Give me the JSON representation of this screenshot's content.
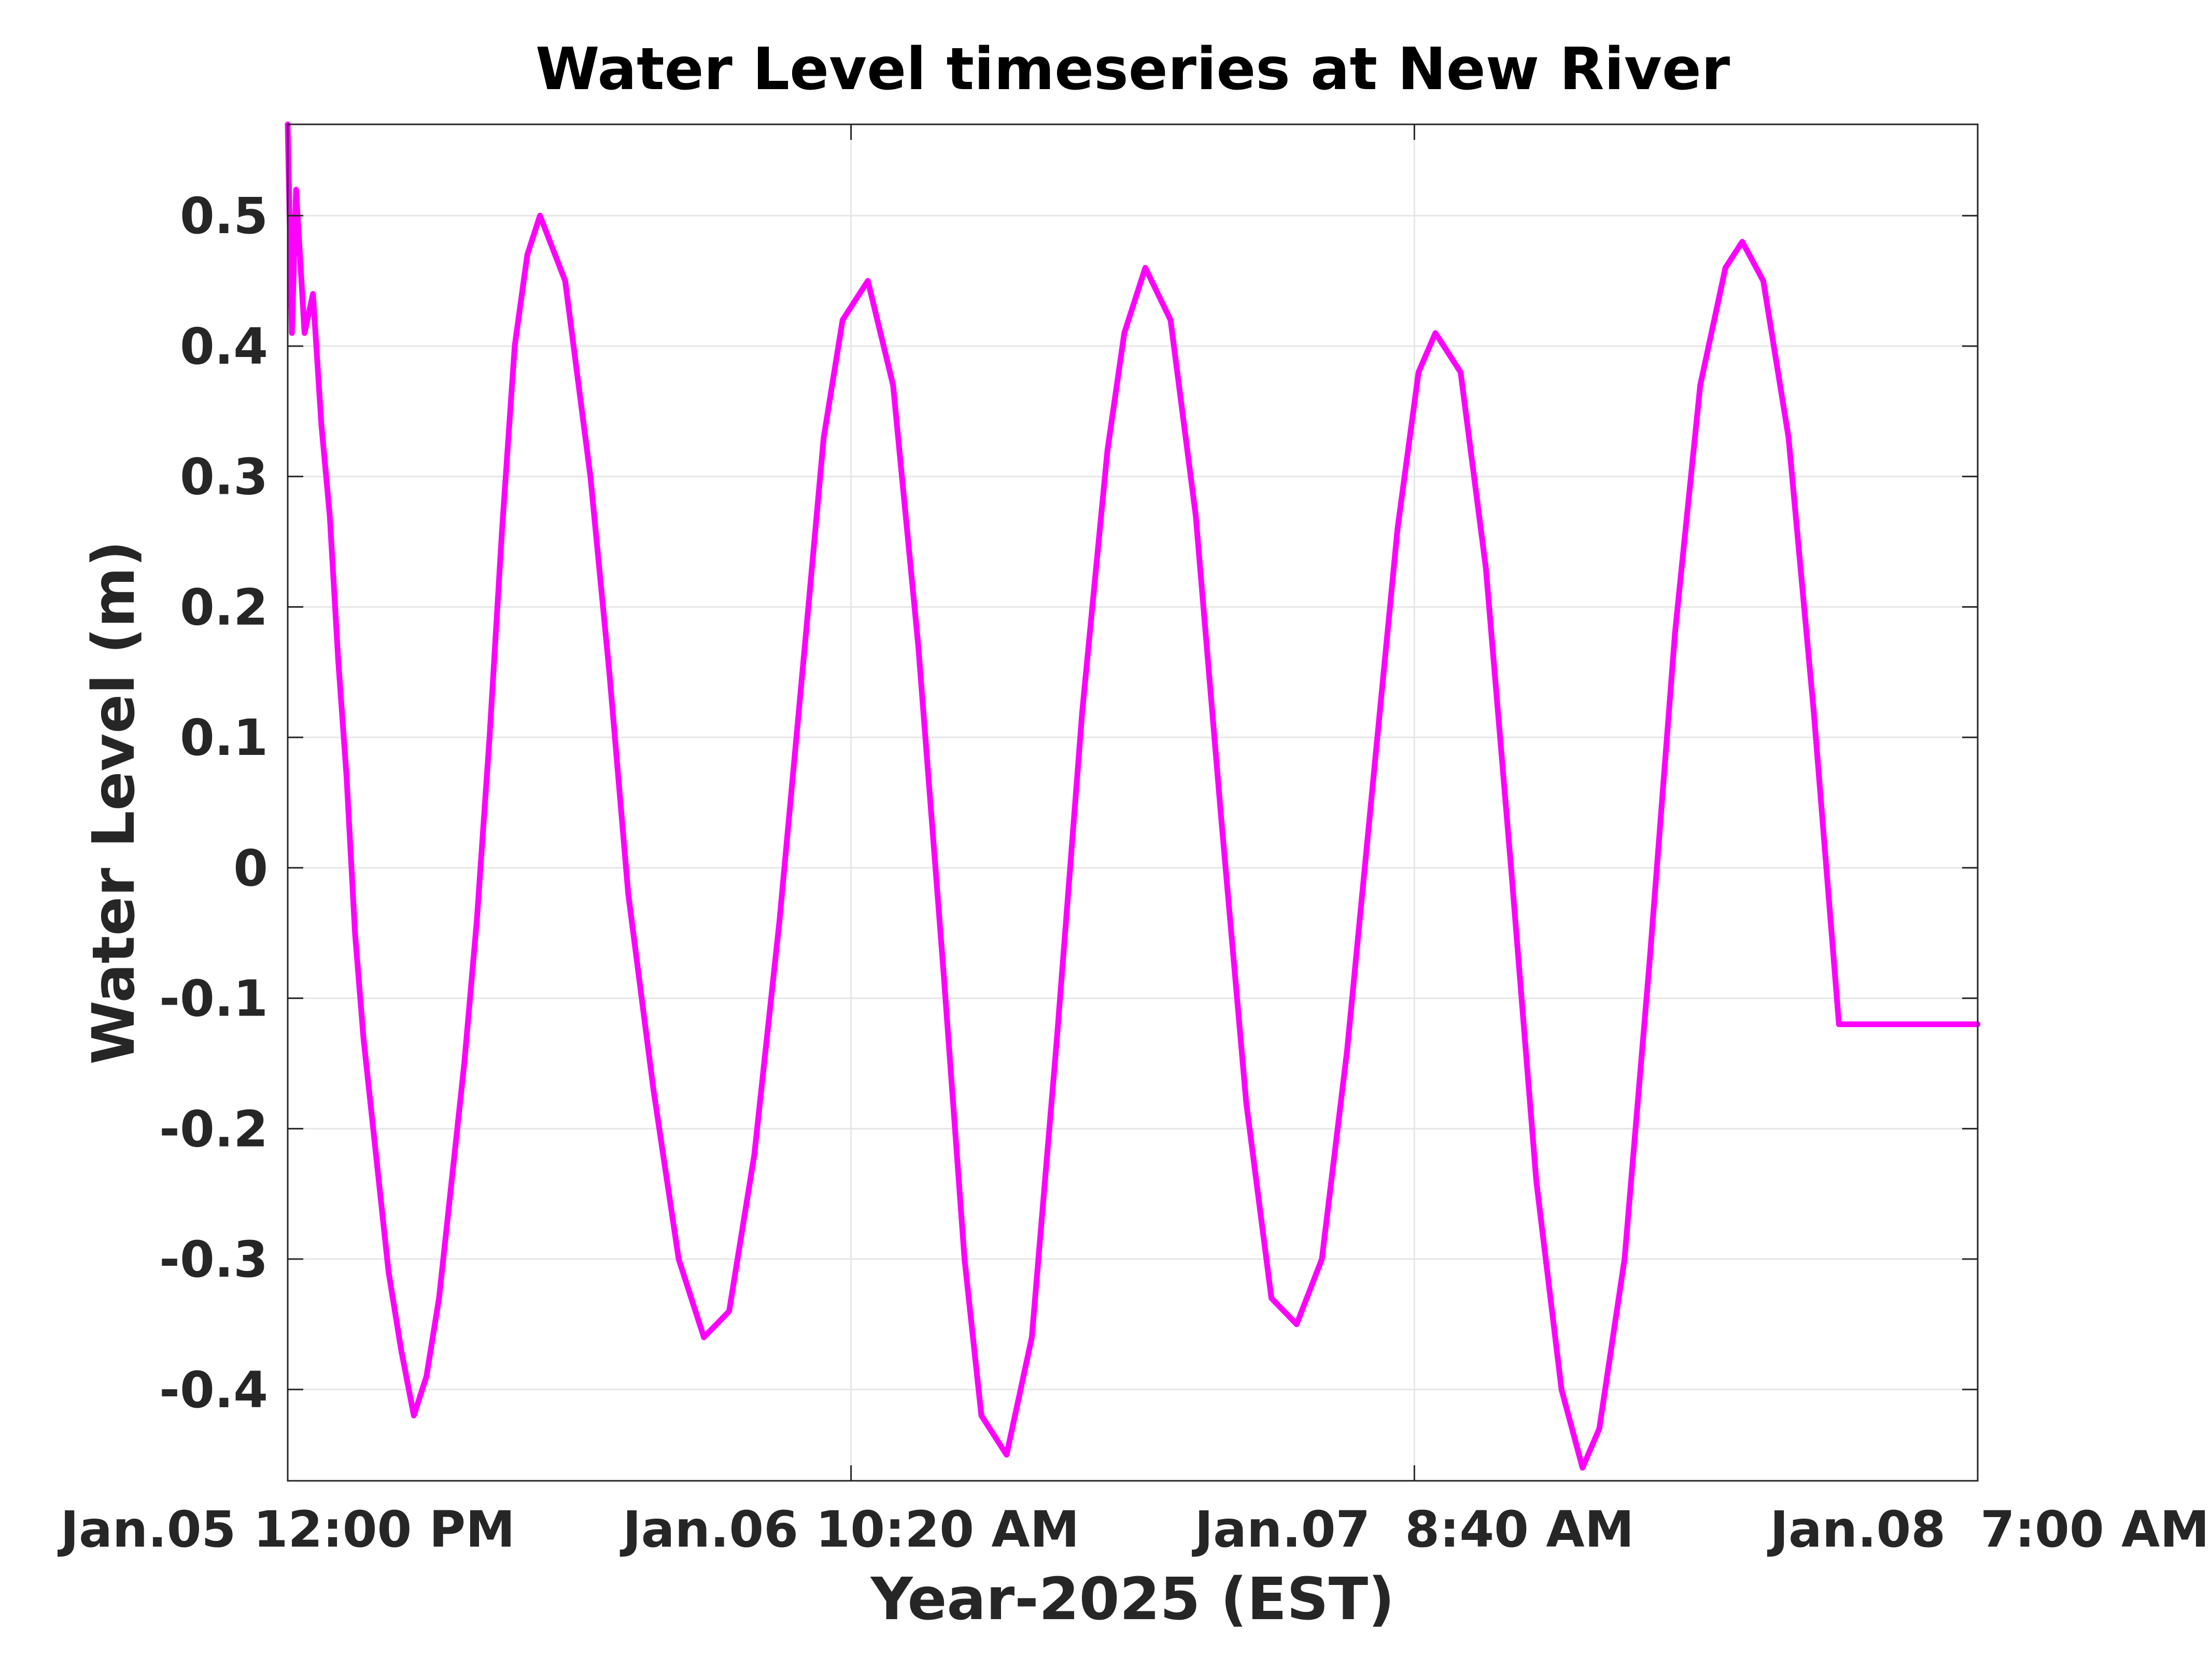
{
  "chart_data": {
    "type": "line",
    "title": "Water Level timeseries at New River",
    "xlabel": "Year-2025 (EST)",
    "ylabel": "Water Level (m)",
    "x_unit": "datetime (EST)",
    "xlim": [
      "2025-01-05 12:00",
      "2025-01-08 07:00"
    ],
    "ylim": [
      -0.47,
      0.57
    ],
    "x_ticks": [
      {
        "value": "2025-01-05 12:00",
        "label": "Jan.05 12:00 PM"
      },
      {
        "value": "2025-01-06 10:20",
        "label": "Jan.06 10:20 AM"
      },
      {
        "value": "2025-01-07 08:40",
        "label": "Jan.07  8:40 AM"
      },
      {
        "value": "2025-01-08 07:00",
        "label": "Jan.08  7:00 AM"
      }
    ],
    "y_ticks": [
      {
        "value": 0.5,
        "label": "0.5"
      },
      {
        "value": 0.4,
        "label": "0.4"
      },
      {
        "value": 0.3,
        "label": "0.3"
      },
      {
        "value": 0.2,
        "label": "0.2"
      },
      {
        "value": 0.1,
        "label": "0.1"
      },
      {
        "value": 0,
        "label": "0"
      },
      {
        "value": -0.1,
        "label": "-0.1"
      },
      {
        "value": -0.2,
        "label": "-0.2"
      },
      {
        "value": -0.3,
        "label": "-0.3"
      },
      {
        "value": -0.4,
        "label": "-0.4"
      }
    ],
    "grid": true,
    "legend": "none",
    "color": "#ff00ff",
    "series": [
      {
        "x": [
          "2025-01-05 12:00",
          "2025-01-05 12:10",
          "2025-01-05 12:20",
          "2025-01-05 12:40",
          "2025-01-05 13:00",
          "2025-01-05 13:20",
          "2025-01-05 13:40",
          "2025-01-05 14:00",
          "2025-01-05 14:20",
          "2025-01-05 14:40",
          "2025-01-05 15:00",
          "2025-01-05 15:30",
          "2025-01-05 16:00",
          "2025-01-05 16:30",
          "2025-01-05 17:00",
          "2025-01-05 17:30",
          "2025-01-05 18:00",
          "2025-01-05 18:30",
          "2025-01-05 19:00",
          "2025-01-05 19:30",
          "2025-01-05 20:00",
          "2025-01-05 20:30",
          "2025-01-05 21:00",
          "2025-01-05 21:30",
          "2025-01-05 22:00",
          "2025-01-05 23:00",
          "2025-01-06 00:00",
          "2025-01-06 00:45",
          "2025-01-06 01:30",
          "2025-01-06 02:30",
          "2025-01-06 03:30",
          "2025-01-06 04:30",
          "2025-01-06 05:30",
          "2025-01-06 06:30",
          "2025-01-06 07:30",
          "2025-01-06 08:30",
          "2025-01-06 09:15",
          "2025-01-06 10:00",
          "2025-01-06 11:00",
          "2025-01-06 12:00",
          "2025-01-06 13:00",
          "2025-01-06 14:00",
          "2025-01-06 14:50",
          "2025-01-06 15:30",
          "2025-01-06 16:30",
          "2025-01-06 17:30",
          "2025-01-06 18:30",
          "2025-01-06 19:30",
          "2025-01-06 20:30",
          "2025-01-06 21:10",
          "2025-01-06 22:00",
          "2025-01-06 23:00",
          "2025-01-07 00:00",
          "2025-01-07 01:00",
          "2025-01-07 02:00",
          "2025-01-07 03:00",
          "2025-01-07 04:00",
          "2025-01-07 05:00",
          "2025-01-07 06:00",
          "2025-01-07 07:00",
          "2025-01-07 08:00",
          "2025-01-07 08:50",
          "2025-01-07 09:30",
          "2025-01-07 10:30",
          "2025-01-07 11:30",
          "2025-01-07 12:30",
          "2025-01-07 13:30",
          "2025-01-07 14:30",
          "2025-01-07 15:20",
          "2025-01-07 16:00",
          "2025-01-07 17:00",
          "2025-01-07 18:00",
          "2025-01-07 19:00",
          "2025-01-07 20:00",
          "2025-01-07 21:00",
          "2025-01-07 21:40",
          "2025-01-07 22:30",
          "2025-01-07 23:30",
          "2025-01-08 00:30",
          "2025-01-08 01:30",
          "2025-01-08 02:30",
          "2025-01-08 03:30",
          "2025-01-08 04:30",
          "2025-01-08 05:30",
          "2025-01-08 06:20",
          "2025-01-08 07:00"
        ],
        "y": [
          0.57,
          0.41,
          0.52,
          0.41,
          0.44,
          0.34,
          0.27,
          0.16,
          0.07,
          -0.05,
          -0.13,
          -0.22,
          -0.31,
          -0.37,
          -0.42,
          -0.39,
          -0.33,
          -0.24,
          -0.15,
          -0.04,
          0.1,
          0.26,
          0.4,
          0.47,
          0.5,
          0.45,
          0.3,
          0.15,
          -0.02,
          -0.17,
          -0.3,
          -0.36,
          -0.34,
          -0.22,
          -0.04,
          0.17,
          0.33,
          0.42,
          0.45,
          0.37,
          0.17,
          -0.08,
          -0.3,
          -0.42,
          -0.45,
          -0.36,
          -0.13,
          0.12,
          0.32,
          0.41,
          0.46,
          0.42,
          0.27,
          0.04,
          -0.18,
          -0.33,
          -0.35,
          -0.3,
          -0.14,
          0.06,
          0.26,
          0.38,
          0.41,
          0.38,
          0.23,
          0.0,
          -0.24,
          -0.4,
          -0.46,
          -0.43,
          -0.3,
          -0.07,
          0.18,
          0.37,
          0.46,
          0.48,
          0.45,
          0.33,
          0.12,
          -0.12,
          -0.12,
          -0.12,
          -0.12,
          -0.12,
          -0.12,
          -0.12
        ]
      }
    ]
  }
}
